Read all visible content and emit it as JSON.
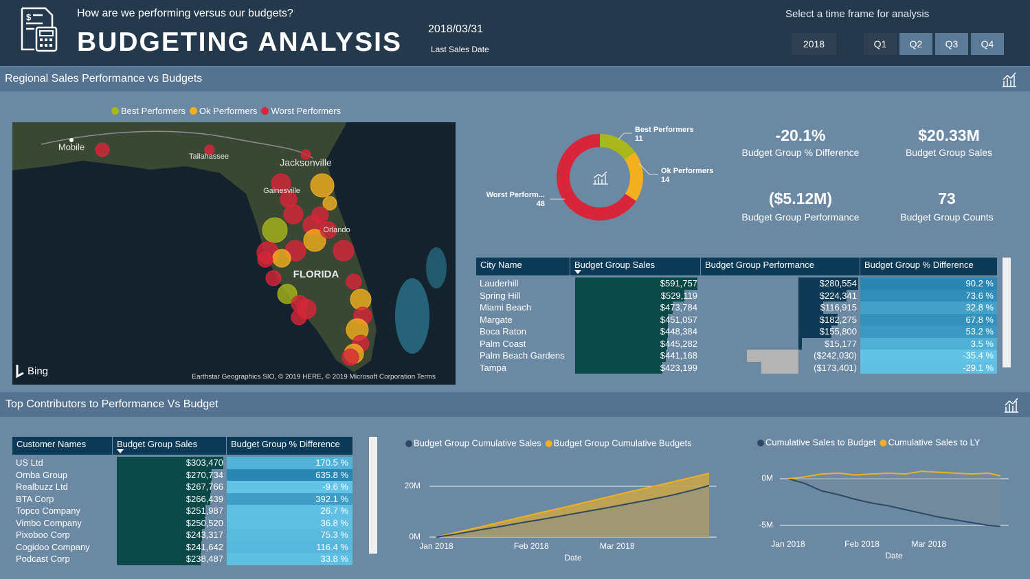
{
  "header": {
    "subtitle": "How are we performing versus our budgets?",
    "title": "BUDGETING ANALYSIS",
    "date": "2018/03/31",
    "date_label": "Last Sales Date",
    "timeframe_label": "Select a time frame for analysis",
    "year": "2018",
    "quarters": [
      "Q1",
      "Q2",
      "Q3",
      "Q4"
    ]
  },
  "regional": {
    "title": "Regional Sales Performance vs Budgets",
    "map": {
      "labels": [
        "Mobile",
        "Tallahassee",
        "Jacksonville",
        "Gainesville",
        "Orlando",
        "FLORIDA"
      ],
      "credit": "Bing",
      "attribution": "Earthstar Geographics SIO, © 2019 HERE, © 2019 Microsoft Corporation Terms"
    }
  },
  "kpis": [
    {
      "value": "-20.1%",
      "label": "Budget Group % Difference"
    },
    {
      "value": "$20.33M",
      "label": "Budget Group Sales"
    },
    {
      "value": "($5.12M)",
      "label": "Budget Group Performance"
    },
    {
      "value": "73",
      "label": "Budget Group Counts"
    }
  ],
  "city_table": {
    "columns": [
      "City Name",
      "Budget Group Sales",
      "Budget Group Performance",
      "Budget Group % Difference"
    ],
    "rows": [
      {
        "city": "Lauderhill",
        "sales": 591757,
        "sales_label": "$591,757",
        "performance": 280554,
        "performance_label": "$280,554",
        "pct": 90.2,
        "pct_label": "90.2 %"
      },
      {
        "city": "Spring Hill",
        "sales": 529119,
        "sales_label": "$529,119",
        "performance": 224341,
        "performance_label": "$224,341",
        "pct": 73.6,
        "pct_label": "73.6 %"
      },
      {
        "city": "Miami Beach",
        "sales": 473784,
        "sales_label": "$473,784",
        "performance": 116915,
        "performance_label": "$116,915",
        "pct": 32.8,
        "pct_label": "32.8 %"
      },
      {
        "city": "Margate",
        "sales": 451057,
        "sales_label": "$451,057",
        "performance": 182275,
        "performance_label": "$182,275",
        "pct": 67.8,
        "pct_label": "67.8 %"
      },
      {
        "city": "Boca Raton",
        "sales": 448384,
        "sales_label": "$448,384",
        "performance": 155800,
        "performance_label": "$155,800",
        "pct": 53.2,
        "pct_label": "53.2 %"
      },
      {
        "city": "Palm Coast",
        "sales": 445282,
        "sales_label": "$445,282",
        "performance": 15177,
        "performance_label": "$15,177",
        "pct": 3.5,
        "pct_label": "3.5 %"
      },
      {
        "city": "Palm Beach Gardens",
        "sales": 441168,
        "sales_label": "$441,168",
        "performance": -242030,
        "performance_label": "($242,030)",
        "pct": -35.4,
        "pct_label": "-35.4 %"
      },
      {
        "city": "Tampa",
        "sales": 423199,
        "sales_label": "$423,199",
        "performance": -173401,
        "performance_label": "($173,401)",
        "pct": -29.1,
        "pct_label": "-29.1 %"
      }
    ]
  },
  "contributors": {
    "title": "Top Contributors to Performance Vs Budget",
    "table": {
      "columns": [
        "Customer Names",
        "Budget Group Sales",
        "Budget Group % Difference"
      ],
      "rows": [
        {
          "name": "US Ltd",
          "sales": 303470,
          "sales_label": "$303,470",
          "pct": 170.5,
          "pct_label": "170.5 %"
        },
        {
          "name": "Omba Group",
          "sales": 270734,
          "sales_label": "$270,734",
          "pct": 635.8,
          "pct_label": "635.8 %"
        },
        {
          "name": "Realbuzz Ltd",
          "sales": 267766,
          "sales_label": "$267,766",
          "pct": -9.6,
          "pct_label": "-9.6 %"
        },
        {
          "name": "BTA Corp",
          "sales": 266439,
          "sales_label": "$266,439",
          "pct": 392.1,
          "pct_label": "392.1 %"
        },
        {
          "name": "Topco Company",
          "sales": 251987,
          "sales_label": "$251,987",
          "pct": 26.7,
          "pct_label": "26.7 %"
        },
        {
          "name": "Vimbo Company",
          "sales": 250520,
          "sales_label": "$250,520",
          "pct": 36.8,
          "pct_label": "36.8 %"
        },
        {
          "name": "Pixoboo Corp",
          "sales": 243317,
          "sales_label": "$243,317",
          "pct": 75.3,
          "pct_label": "75.3 %"
        },
        {
          "name": "Cogidoo Company",
          "sales": 241642,
          "sales_label": "$241,642",
          "pct": 116.4,
          "pct_label": "116.4 %"
        },
        {
          "name": "Podcast Corp",
          "sales": 238487,
          "sales_label": "$238,487",
          "pct": 33.8,
          "pct_label": "33.8 %"
        }
      ]
    }
  },
  "chart_data": [
    {
      "type": "pie",
      "donut": true,
      "categories": [
        "Best Performers",
        "Ok Performers",
        "Worst Performers"
      ],
      "slice_labels": [
        "Best Performers",
        "Ok Performers",
        "Worst Perform..."
      ],
      "values": [
        11,
        14,
        48
      ],
      "colors": [
        "#a8b71a",
        "#f2b01e",
        "#d8253a"
      ]
    },
    {
      "type": "line",
      "area": true,
      "x": [
        0,
        7,
        14,
        21,
        28,
        35,
        42,
        49,
        56,
        63,
        70,
        77,
        84,
        89
      ],
      "series": [
        {
          "name": "Budget Group Cumulative Budgets",
          "color": "#f2b01e",
          "values": [
            0,
            2.0,
            3.9,
            5.9,
            7.9,
            9.9,
            11.8,
            13.8,
            15.8,
            17.8,
            19.7,
            21.7,
            23.7,
            25.1
          ]
        },
        {
          "name": "Budget Group Cumulative Sales",
          "color": "#2b4864",
          "values": [
            0,
            1.3,
            2.8,
            4.2,
            5.7,
            7.1,
            8.6,
            10.1,
            11.6,
            13.2,
            14.8,
            16.5,
            18.6,
            20.3
          ]
        }
      ],
      "xlim": [
        0,
        89
      ],
      "xticks": [
        {
          "value": 0,
          "label": "Jan 2018"
        },
        {
          "value": 31,
          "label": "Feb 2018"
        },
        {
          "value": 59,
          "label": "Mar 2018"
        }
      ],
      "ylim": [
        -1,
        27
      ],
      "yticks": [
        {
          "value": 0,
          "label": "0M"
        },
        {
          "value": 20,
          "label": "20M"
        }
      ],
      "xlabel": "Date",
      "legend_order": [
        1,
        0
      ]
    },
    {
      "type": "line",
      "area": true,
      "x": [
        0,
        7,
        14,
        21,
        28,
        35,
        42,
        49,
        56,
        63,
        70,
        77,
        84,
        89
      ],
      "series": [
        {
          "name": "Cumulative Sales to Budget",
          "color": "#2b4864",
          "values": [
            0,
            -0.5,
            -1.3,
            -1.7,
            -2.2,
            -2.6,
            -2.9,
            -3.3,
            -3.7,
            -4.1,
            -4.4,
            -4.7,
            -5.0,
            -5.1
          ]
        },
        {
          "name": "Cumulative Sales to LY",
          "color": "#f2b01e",
          "values": [
            0,
            0.2,
            0.5,
            0.6,
            0.4,
            0.5,
            0.6,
            0.5,
            0.8,
            0.7,
            0.6,
            0.5,
            0.6,
            0.3
          ]
        }
      ],
      "xlim": [
        0,
        89
      ],
      "xticks": [
        {
          "value": 0,
          "label": "Jan 2018"
        },
        {
          "value": 31,
          "label": "Feb 2018"
        },
        {
          "value": 59,
          "label": "Mar 2018"
        }
      ],
      "ylim": [
        -5.7,
        1.3
      ],
      "yticks": [
        {
          "value": 0,
          "label": "0M"
        },
        {
          "value": -5,
          "label": "-5M"
        }
      ],
      "xlabel": "Date",
      "legend_order": [
        0,
        1
      ]
    }
  ]
}
